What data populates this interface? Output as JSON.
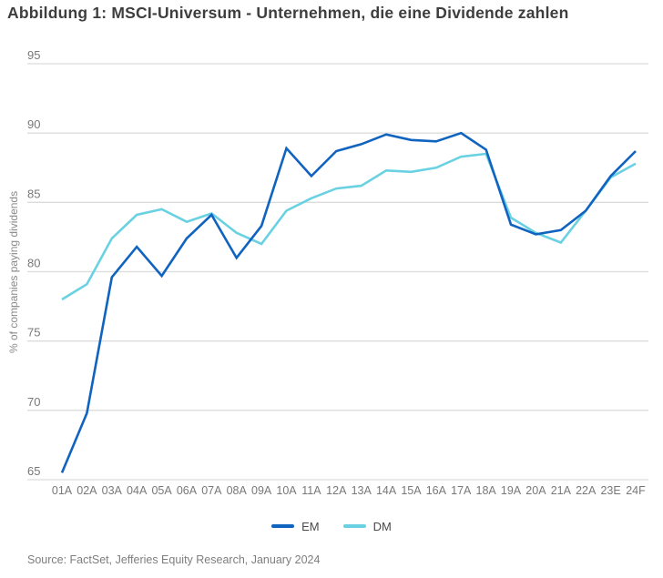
{
  "header": {
    "title": "Abbildung 1: MSCI-Universum - Unternehmen, die eine Dividende zahlen"
  },
  "chart_data": {
    "type": "line",
    "title": "Abbildung 1: MSCI-Universum - Unternehmen, die eine Dividende zahlen",
    "xlabel": "",
    "ylabel": "% of companies paying dividends",
    "ylim": [
      65,
      95
    ],
    "yticks": [
      65,
      70,
      75,
      80,
      85,
      90,
      95
    ],
    "grid": "horizontal",
    "legend_position": "bottom-center",
    "categories": [
      "01A",
      "02A",
      "03A",
      "04A",
      "05A",
      "06A",
      "07A",
      "08A",
      "09A",
      "10A",
      "11A",
      "12A",
      "13A",
      "14A",
      "15A",
      "16A",
      "17A",
      "18A",
      "19A",
      "20A",
      "21A",
      "22A",
      "23E",
      "24F"
    ],
    "series": [
      {
        "name": "EM",
        "color": "#1063BE",
        "values": [
          65.5,
          69.8,
          79.6,
          81.8,
          79.7,
          82.4,
          84.1,
          81.0,
          83.3,
          88.9,
          86.9,
          88.7,
          89.2,
          89.9,
          89.5,
          89.4,
          90.0,
          88.8,
          83.4,
          82.7,
          83.0,
          84.4,
          86.9,
          88.7
        ]
      },
      {
        "name": "DM",
        "color": "#6AD1E3",
        "values": [
          78.0,
          79.1,
          82.4,
          84.1,
          84.5,
          83.6,
          84.2,
          82.8,
          82.0,
          84.4,
          85.3,
          86.0,
          86.2,
          87.3,
          87.2,
          87.5,
          88.3,
          88.5,
          83.9,
          82.8,
          82.1,
          84.4,
          86.8,
          87.8
        ]
      }
    ]
  },
  "footer": {
    "source": "Source: FactSet, Jefferies Equity Research, January 2024"
  },
  "colors": {
    "title_text": "#3e3e3e",
    "axis_text": "#787878",
    "gridline": "#dcdcdc",
    "background": "#ffffff",
    "em_line": "#1063BE",
    "dm_line": "#6AD1E3"
  }
}
